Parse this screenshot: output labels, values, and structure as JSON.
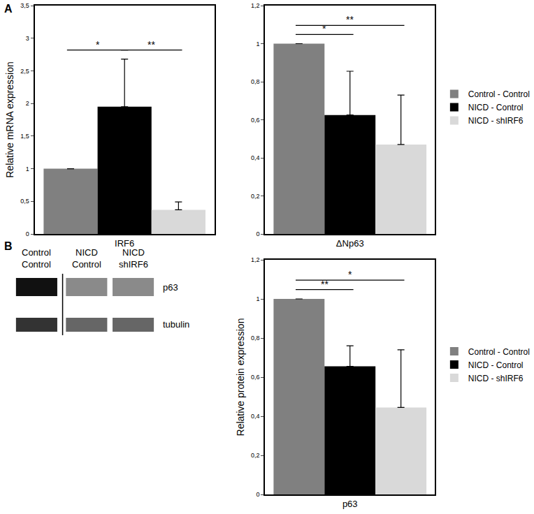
{
  "panel_labels": [
    "A",
    "B"
  ],
  "blot": {
    "lanes": [
      [
        "Control",
        "Control"
      ],
      [
        "NICD",
        "Control"
      ],
      [
        "NICD",
        "shIRF6"
      ]
    ],
    "bands": [
      "p63",
      "tubulin"
    ]
  },
  "chart_data": [
    {
      "type": "bar",
      "y_label": "Relative mRNA expression",
      "categories": [
        "IRF6"
      ],
      "ylim": [
        0,
        3.5
      ],
      "yticks": [
        0,
        {
          "value": 0.5,
          "label": "0,5"
        },
        1,
        {
          "value": 1.5,
          "label": "1,5"
        },
        2,
        {
          "value": 2.5,
          "label": "2,5"
        },
        3,
        {
          "value": 3.5,
          "label": "3,5"
        }
      ],
      "grid": false,
      "series": [
        {
          "name": "Control - Control",
          "color": "#808080",
          "values": [
            1
          ],
          "errors": [
            null
          ]
        },
        {
          "name": "NICD - Control",
          "color": "#000000",
          "values": [
            1.95
          ],
          "errors": [
            0.73
          ]
        },
        {
          "name": "NICD - shIRF6",
          "color": "#d9d9d9",
          "values": [
            0.37
          ],
          "errors": [
            0.12
          ]
        }
      ],
      "significance": [
        {
          "between": [
            0,
            1
          ],
          "text": "*"
        },
        {
          "between": [
            1,
            2
          ],
          "text": "**"
        }
      ]
    },
    {
      "type": "bar",
      "categories": [
        "ΔNp63"
      ],
      "ylim": [
        0,
        1.2
      ],
      "yticks": [
        0,
        {
          "value": 0.2,
          "label": "0,2"
        },
        {
          "value": 0.4,
          "label": "0,4"
        },
        {
          "value": 0.6,
          "label": "0,6"
        },
        {
          "value": 0.8,
          "label": "0,8"
        },
        1,
        {
          "value": 1.2,
          "label": "1,2"
        }
      ],
      "grid": false,
      "legend": "right",
      "series": [
        {
          "name": "Control - Control",
          "color": "#808080",
          "values": [
            1
          ],
          "errors": [
            null
          ]
        },
        {
          "name": "NICD - Control",
          "color": "#000000",
          "values": [
            0.625
          ],
          "errors": [
            0.23
          ]
        },
        {
          "name": "NICD - shIRF6",
          "color": "#d9d9d9",
          "values": [
            0.47
          ],
          "errors": [
            0.26
          ]
        }
      ],
      "significance": [
        {
          "between": [
            0,
            1
          ],
          "text": "*"
        },
        {
          "between": [
            0,
            2
          ],
          "text": "**"
        }
      ]
    },
    {
      "type": "bar",
      "y_label": "Relative protein expression",
      "categories": [
        "p63"
      ],
      "ylim": [
        0,
        1.2
      ],
      "yticks": [
        0,
        {
          "value": 0.2,
          "label": "0,2"
        },
        {
          "value": 0.4,
          "label": "0,4"
        },
        {
          "value": 0.6,
          "label": "0,6"
        },
        {
          "value": 0.8,
          "label": "0,8"
        },
        1,
        {
          "value": 1.2,
          "label": "1,2"
        }
      ],
      "grid": false,
      "legend": "right",
      "series": [
        {
          "name": "Control - Control",
          "color": "#808080",
          "values": [
            1
          ],
          "errors": [
            null
          ]
        },
        {
          "name": "NICD - Control",
          "color": "#000000",
          "values": [
            0.655
          ],
          "errors": [
            0.105
          ]
        },
        {
          "name": "NICD - shIRF6",
          "color": "#d9d9d9",
          "values": [
            0.445
          ],
          "errors": [
            0.295
          ]
        }
      ],
      "significance": [
        {
          "between": [
            0,
            1
          ],
          "text": "**"
        },
        {
          "between": [
            0,
            2
          ],
          "text": "*"
        }
      ]
    }
  ]
}
